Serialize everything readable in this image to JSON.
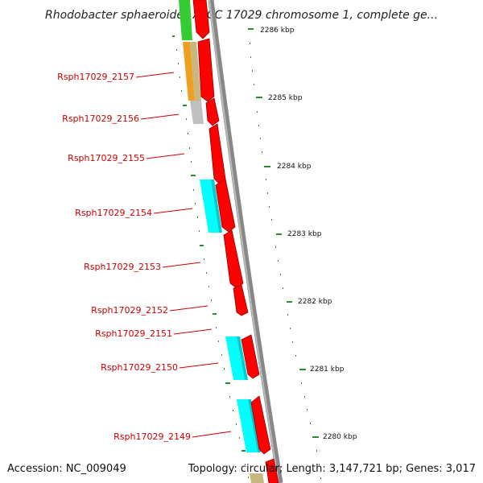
{
  "title": "Rhodobacter sphaeroides ATCC 17029 chromosome 1, complete ge...",
  "footer": {
    "accession": "Accession: NC_009049",
    "summary": "Topology: circular; Length: 3,147,721 bp; Genes: 3,017"
  },
  "scale_labels": [
    "2286 kbp",
    "2285 kbp",
    "2284 kbp",
    "2283 kbp",
    "2282 kbp",
    "2281 kbp",
    "2280 kbp"
  ],
  "gene_labels": [
    "Rsph17029_2157",
    "Rsph17029_2156",
    "Rsph17029_2155",
    "Rsph17029_2154",
    "Rsph17029_2153",
    "Rsph17029_2152",
    "Rsph17029_2151",
    "Rsph17029_2150",
    "Rsph17029_2149"
  ],
  "colors": {
    "cds": "#ff0000",
    "backbone": "#888888",
    "tick": "#2e8b2e",
    "label": "#cc0000",
    "cyan_track": "#00ffff",
    "orange_track": "#f0a020",
    "tan_track": "#c8b880",
    "green_track": "#33cc33",
    "gray_track": "#c0c0c0"
  }
}
